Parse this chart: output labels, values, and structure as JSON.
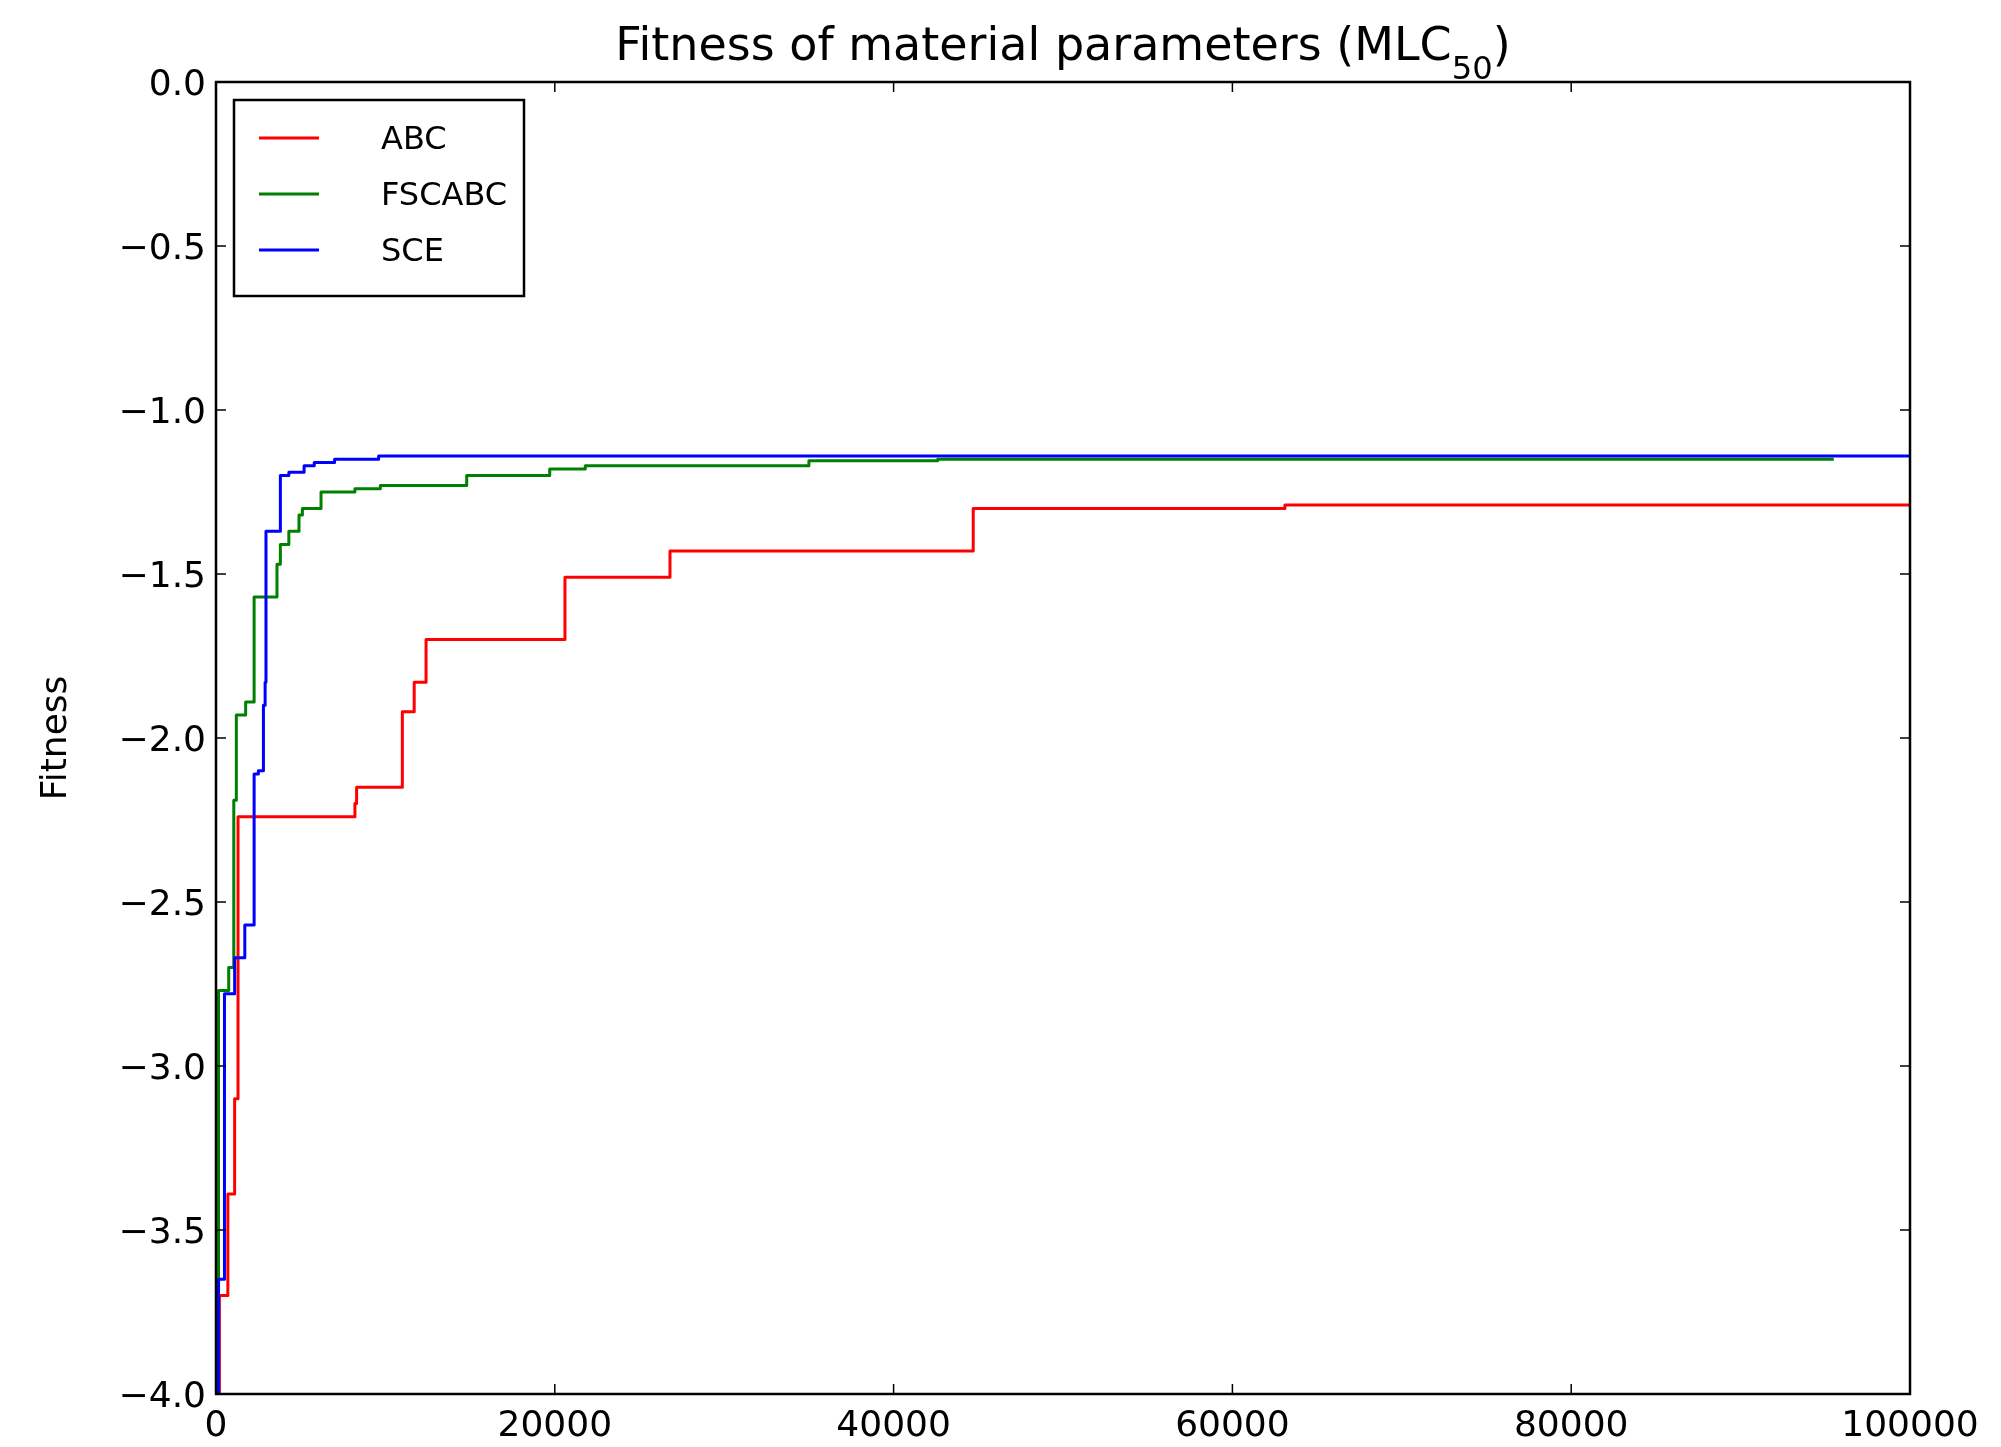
{
  "chart_data": {
    "type": "step",
    "title": "Fitness of material parameters (MLC$_{50}$)",
    "ylabel": "Fitness",
    "xlim": [
      0,
      100000
    ],
    "ylim": [
      -4,
      0
    ],
    "xticks": [
      0,
      20000,
      40000,
      60000,
      80000,
      100000
    ],
    "yticks": [
      {
        "value": -4,
        "label": "−4.0"
      },
      {
        "value": -3.5,
        "label": "−3.5"
      },
      {
        "value": -3,
        "label": "−3.0"
      },
      {
        "value": -2.5,
        "label": "−2.5"
      },
      {
        "value": -2,
        "label": "−2.0"
      },
      {
        "value": -1.5,
        "label": "−1.5"
      },
      {
        "value": -1,
        "label": "−1.0"
      },
      {
        "value": -0.5,
        "label": "−0.5"
      },
      {
        "value": 0,
        "label": "0.0"
      }
    ],
    "grid": false,
    "legend": "top left",
    "series": [
      {
        "name": "ABC",
        "color": "#ff0000",
        "x": [
          0,
          200,
          700,
          1100,
          1300,
          8200,
          8300,
          11000,
          11700,
          12400,
          20600,
          26800,
          44700,
          63100,
          100000
        ],
        "values": [
          -4,
          -3.7,
          -3.39,
          -3.1,
          -2.24,
          -2.2,
          -2.15,
          -1.92,
          -1.83,
          -1.7,
          -1.51,
          -1.43,
          -1.3,
          -1.29,
          -1.29
        ]
      },
      {
        "name": "FSCABC",
        "color": "#008000",
        "x": [
          0,
          150,
          750,
          1050,
          1200,
          1750,
          2250,
          3600,
          3800,
          4300,
          4900,
          5100,
          6200,
          8200,
          9700,
          14800,
          19700,
          21800,
          35000,
          42600,
          95500
        ],
        "values": [
          -4,
          -2.77,
          -2.7,
          -2.19,
          -1.93,
          -1.89,
          -1.57,
          -1.47,
          -1.41,
          -1.37,
          -1.32,
          -1.3,
          -1.25,
          -1.24,
          -1.23,
          -1.2,
          -1.18,
          -1.17,
          -1.155,
          -1.15,
          -1.15
        ]
      },
      {
        "name": "SCE",
        "color": "#0000ff",
        "x": [
          0,
          150,
          500,
          1100,
          1700,
          2250,
          2500,
          2800,
          2900,
          2950,
          3800,
          4300,
          5200,
          5800,
          7000,
          9600,
          100000
        ],
        "values": [
          -4,
          -3.65,
          -2.78,
          -2.67,
          -2.57,
          -2.11,
          -2.1,
          -1.9,
          -1.83,
          -1.37,
          -1.2,
          -1.19,
          -1.17,
          -1.16,
          -1.15,
          -1.14,
          -1.14
        ]
      }
    ]
  }
}
